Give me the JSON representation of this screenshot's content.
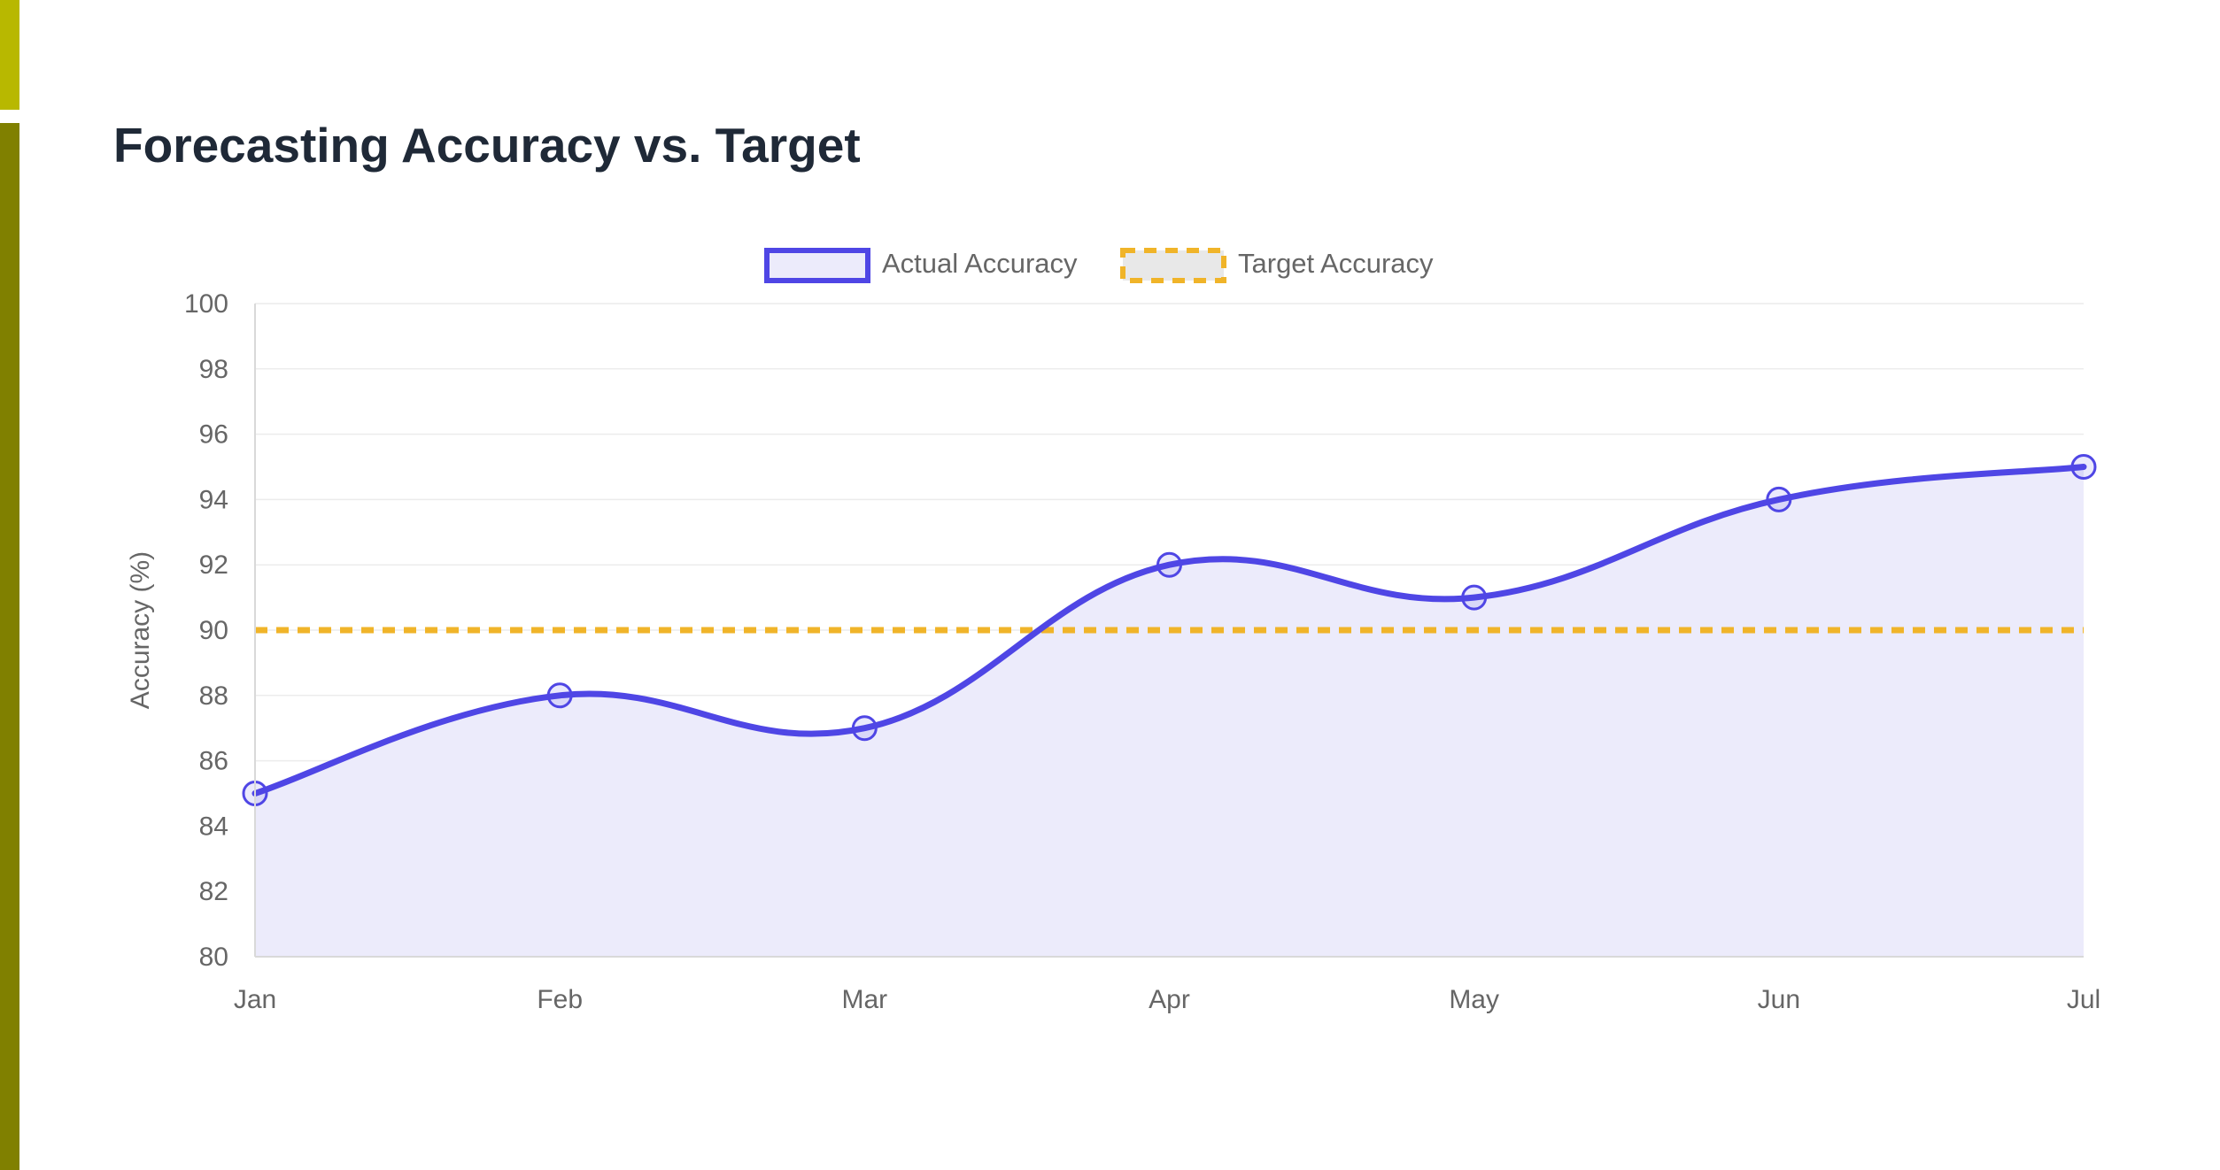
{
  "colors": {
    "accent_top": "#b8b800",
    "accent_bottom": "#808000",
    "actual_line": "#4f46e5",
    "actual_fill": "#ecebfb",
    "target_line": "#f0b429",
    "target_legend_fill": "#e8e8e8",
    "grid": "#ececec",
    "axis_text": "#666666"
  },
  "chart_data": {
    "type": "line",
    "title": "Forecasting Accuracy vs. Target",
    "xlabel": "",
    "ylabel": "Accuracy (%)",
    "categories": [
      "Jan",
      "Feb",
      "Mar",
      "Apr",
      "May",
      "Jun",
      "Jul"
    ],
    "ylim": [
      80,
      100
    ],
    "yticks": [
      80,
      82,
      84,
      86,
      88,
      90,
      92,
      94,
      96,
      98,
      100
    ],
    "grid": true,
    "legend": "top-center",
    "series": [
      {
        "name": "Actual Accuracy",
        "values": [
          85,
          88,
          87,
          92,
          91,
          94,
          95
        ],
        "style": "solid",
        "filled": true,
        "markers": "circle"
      },
      {
        "name": "Target Accuracy",
        "values": [
          90,
          90,
          90,
          90,
          90,
          90,
          90
        ],
        "style": "dashed",
        "filled": false,
        "markers": "none"
      }
    ]
  }
}
